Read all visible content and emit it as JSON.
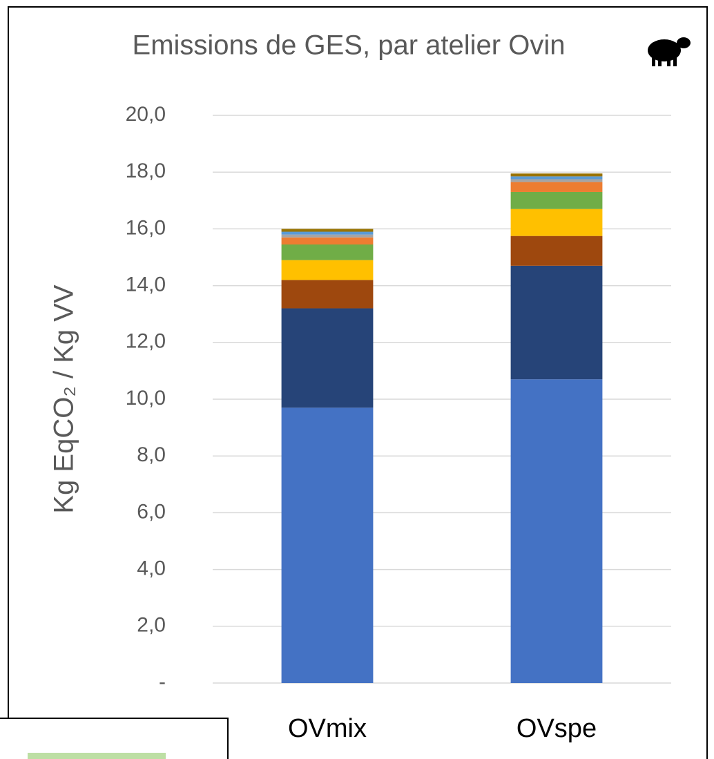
{
  "chart_data": {
    "type": "stacked_bar",
    "title": "Emissions de GES, par atelier Ovin",
    "ylabel": "Kg EqCO₂ / Kg VV",
    "categories": [
      "OVmix",
      "OVspe"
    ],
    "series": [
      {
        "color": "#4472c4",
        "values": [
          9.7,
          10.7
        ]
      },
      {
        "color": "#264478",
        "values": [
          3.5,
          4.0
        ]
      },
      {
        "color": "#9e480e",
        "values": [
          1.0,
          1.05
        ]
      },
      {
        "color": "#ffc000",
        "values": [
          0.7,
          0.95
        ]
      },
      {
        "color": "#70ad47",
        "values": [
          0.55,
          0.6
        ]
      },
      {
        "color": "#ed7d31",
        "values": [
          0.25,
          0.35
        ]
      },
      {
        "color": "#a5a5a5",
        "values": [
          0.1,
          0.1
        ]
      },
      {
        "color": "#5b9bd5",
        "values": [
          0.1,
          0.1
        ]
      },
      {
        "color": "#997300",
        "values": [
          0.1,
          0.1
        ]
      }
    ],
    "ylim": [
      0,
      20
    ],
    "yticks": [
      {
        "value": 0,
        "label": "-"
      },
      {
        "value": 2,
        "label": "2,0"
      },
      {
        "value": 4,
        "label": "4,0"
      },
      {
        "value": 6,
        "label": "6,0"
      },
      {
        "value": 8,
        "label": "8,0"
      },
      {
        "value": 10,
        "label": "10,0"
      },
      {
        "value": 12,
        "label": "12,0"
      },
      {
        "value": 14,
        "label": "14,0"
      },
      {
        "value": 16,
        "label": "16,0"
      },
      {
        "value": 18,
        "label": "18,0"
      },
      {
        "value": 20,
        "label": "20,0"
      }
    ],
    "grid": true
  }
}
